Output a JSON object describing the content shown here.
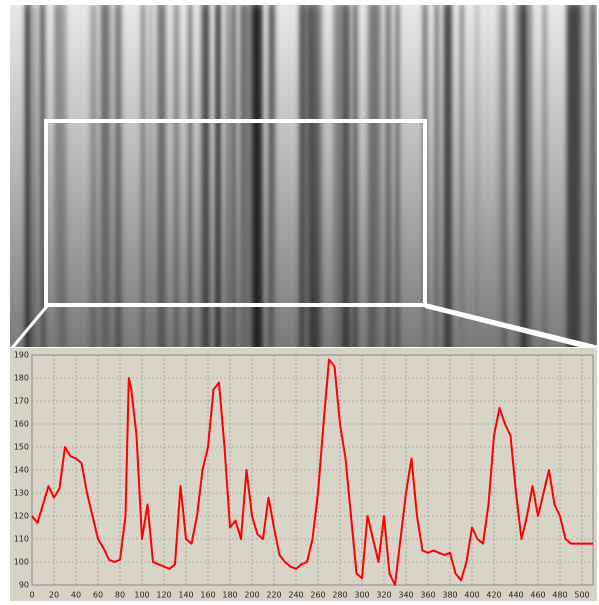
{
  "chart_data": {
    "type": "line",
    "x": [
      0,
      5,
      10,
      15,
      20,
      25,
      30,
      35,
      40,
      45,
      50,
      55,
      60,
      65,
      70,
      75,
      80,
      85,
      88,
      90,
      95,
      100,
      105,
      110,
      115,
      120,
      125,
      130,
      135,
      140,
      145,
      150,
      155,
      160,
      165,
      170,
      175,
      180,
      185,
      190,
      195,
      200,
      205,
      210,
      215,
      220,
      225,
      230,
      235,
      240,
      245,
      250,
      255,
      260,
      265,
      270,
      275,
      280,
      285,
      290,
      295,
      300,
      305,
      310,
      315,
      320,
      325,
      330,
      335,
      340,
      345,
      350,
      355,
      360,
      365,
      370,
      375,
      380,
      385,
      390,
      395,
      400,
      405,
      410,
      415,
      420,
      425,
      430,
      435,
      440,
      445,
      450,
      455,
      460,
      465,
      470,
      475,
      480,
      485,
      490,
      495,
      500,
      505,
      510
    ],
    "series": [
      {
        "color": "#ff0000",
        "values": [
          120,
          117,
          125,
          133,
          128,
          132,
          150,
          146,
          145,
          143,
          130,
          120,
          110,
          106,
          101,
          100,
          101,
          120,
          180,
          176,
          155,
          110,
          125,
          100,
          99,
          98,
          97,
          99,
          133,
          110,
          108,
          120,
          140,
          150,
          175,
          178,
          150,
          115,
          118,
          110,
          140,
          120,
          112,
          110,
          128,
          115,
          103,
          100,
          98,
          97,
          99,
          100,
          110,
          130,
          160,
          188,
          185,
          160,
          145,
          120,
          95,
          93,
          120,
          110,
          100,
          120,
          95,
          90,
          110,
          130,
          145,
          120,
          105,
          104,
          105,
          104,
          103,
          104,
          95,
          92,
          100,
          115,
          110,
          108,
          125,
          155,
          167,
          160,
          155,
          130,
          110,
          120,
          133,
          120,
          130,
          140,
          125,
          120,
          110,
          108,
          108,
          108,
          108,
          108
        ]
      }
    ],
    "xlim": [
      0,
      510
    ],
    "ylim": [
      90,
      190
    ],
    "xticks": [
      0,
      20,
      40,
      60,
      80,
      100,
      120,
      140,
      160,
      180,
      200,
      220,
      240,
      260,
      280,
      300,
      320,
      340,
      360,
      380,
      400,
      420,
      440,
      460,
      480,
      500
    ],
    "yticks": [
      90,
      100,
      110,
      120,
      130,
      140,
      150,
      160,
      170,
      180,
      190
    ],
    "grid": true
  }
}
